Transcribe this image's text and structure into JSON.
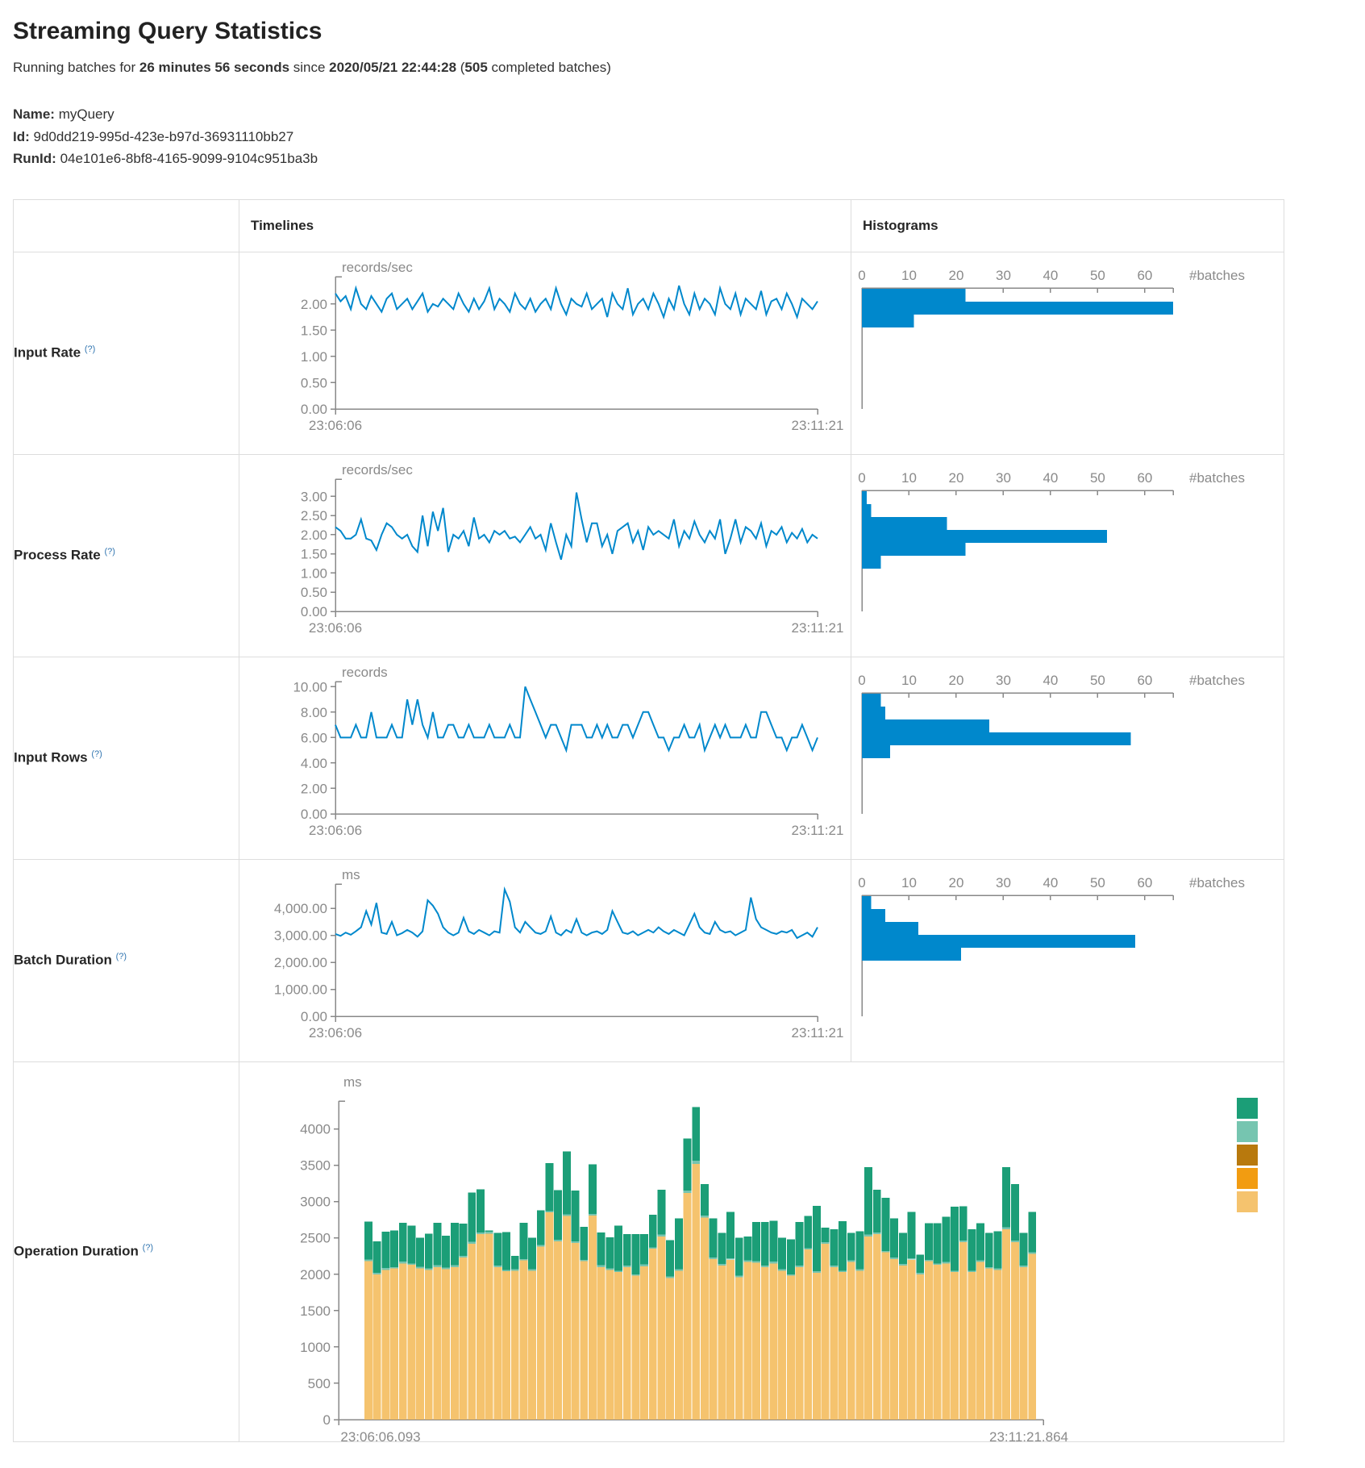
{
  "header": {
    "title": "Streaming Query Statistics",
    "running_prefix": "Running batches for ",
    "duration": "26 minutes 56 seconds",
    "since": " since ",
    "start_time": "2020/05/21 22:44:28",
    "open_paren": " (",
    "completed_batches": "505",
    "completed_suffix": " completed batches)"
  },
  "meta": {
    "name_label": "Name:",
    "name_value": "myQuery",
    "id_label": "Id:",
    "id_value": "9d0dd219-995d-423e-b97d-36931110bb27",
    "runid_label": "RunId:",
    "runid_value": "04e101e6-8bf8-4165-9099-9104c951ba3b"
  },
  "table": {
    "col_timelines": "Timelines",
    "col_histograms": "Histograms"
  },
  "colors": {
    "accent_blue": "#0088cc",
    "axis_gray": "#888888",
    "text_gray": "#8a8a8a",
    "stack_tan": "#f5c36e",
    "stack_lightteal": "#76c5b0",
    "stack_teal": "#1b9e77",
    "legend": [
      "#1b9e77",
      "#76c5b0",
      "#b8790d",
      "#f29c11",
      "#f5c36e"
    ]
  },
  "chart_data": [
    {
      "label": "Input Rate",
      "tooltip": "(?)",
      "timeline": {
        "type": "line",
        "unit": "records/sec",
        "ymax": 2.52,
        "yticks": [
          0,
          0.5,
          1,
          1.5,
          2
        ],
        "ytick_labels": [
          "0.00",
          "0.50",
          "1.00",
          "1.50",
          "2.00"
        ],
        "x_start": "23:06:06",
        "x_end": "23:11:21",
        "values": [
          2.2,
          2.05,
          2.15,
          1.9,
          2.3,
          2.0,
          1.9,
          2.15,
          2.0,
          1.85,
          2.1,
          2.2,
          1.9,
          2.0,
          2.1,
          1.9,
          2.05,
          2.2,
          1.85,
          2.0,
          1.95,
          2.1,
          2.0,
          1.9,
          2.2,
          2.0,
          1.85,
          2.1,
          1.9,
          2.05,
          2.3,
          1.9,
          2.1,
          2.0,
          1.85,
          2.2,
          2.0,
          1.9,
          2.1,
          1.85,
          2.0,
          2.1,
          1.9,
          2.3,
          2.0,
          1.8,
          2.1,
          2.0,
          1.95,
          2.2,
          1.9,
          2.0,
          2.1,
          1.75,
          2.2,
          2.0,
          1.9,
          2.3,
          1.8,
          2.0,
          2.1,
          1.9,
          2.2,
          2.0,
          1.75,
          2.1,
          1.9,
          2.35,
          2.0,
          1.8,
          2.2,
          1.9,
          2.1,
          2.0,
          1.8,
          2.3,
          2.0,
          1.9,
          2.2,
          1.8,
          2.1,
          2.0,
          1.9,
          2.25,
          1.8,
          2.05,
          2.1,
          1.9,
          2.2,
          2.0,
          1.75,
          2.1,
          2.0,
          1.9,
          2.05
        ]
      },
      "histogram": {
        "type": "bar",
        "axis_label": "#batches",
        "xticks": [
          0,
          10,
          20,
          30,
          40,
          50,
          60
        ],
        "xmax": 66,
        "counts": [
          22,
          66,
          11
        ]
      }
    },
    {
      "label": "Process Rate",
      "tooltip": "(?)",
      "timeline": {
        "type": "line",
        "unit": "records/sec",
        "ymax": 3.45,
        "yticks": [
          0,
          0.5,
          1,
          1.5,
          2,
          2.5,
          3
        ],
        "ytick_labels": [
          "0.00",
          "0.50",
          "1.00",
          "1.50",
          "2.00",
          "2.50",
          "3.00"
        ],
        "x_start": "23:06:06",
        "x_end": "23:11:21",
        "values": [
          2.2,
          2.1,
          1.9,
          1.9,
          2.0,
          2.4,
          1.9,
          1.85,
          1.6,
          2.0,
          2.3,
          2.2,
          2.0,
          1.9,
          2.0,
          1.7,
          1.55,
          2.5,
          1.7,
          2.6,
          2.1,
          2.7,
          1.55,
          2.0,
          1.9,
          2.1,
          1.7,
          2.45,
          1.9,
          2.0,
          1.8,
          2.1,
          2.0,
          2.1,
          1.9,
          1.95,
          1.8,
          2.0,
          2.2,
          1.9,
          2.0,
          1.6,
          2.3,
          1.8,
          1.35,
          2.0,
          1.7,
          3.1,
          2.4,
          1.8,
          2.3,
          2.3,
          1.7,
          2.0,
          1.5,
          2.1,
          2.2,
          2.3,
          1.8,
          2.1,
          1.6,
          2.2,
          2.0,
          2.1,
          2.0,
          1.9,
          2.4,
          1.7,
          2.1,
          1.9,
          2.35,
          2.0,
          1.8,
          2.1,
          1.9,
          2.4,
          1.5,
          1.9,
          2.4,
          1.8,
          2.2,
          2.1,
          1.9,
          2.3,
          1.7,
          2.1,
          2.0,
          2.2,
          1.8,
          2.05,
          1.9,
          2.15,
          1.8,
          2.0,
          1.9
        ]
      },
      "histogram": {
        "type": "bar",
        "axis_label": "#batches",
        "xticks": [
          0,
          10,
          20,
          30,
          40,
          50,
          60
        ],
        "xmax": 66,
        "counts": [
          1,
          2,
          18,
          52,
          22,
          4
        ]
      }
    },
    {
      "label": "Input Rows",
      "tooltip": "(?)",
      "timeline": {
        "type": "line",
        "unit": "records",
        "ymax": 10.4,
        "yticks": [
          0,
          2,
          4,
          6,
          8,
          10
        ],
        "ytick_labels": [
          "0.00",
          "2.00",
          "4.00",
          "6.00",
          "8.00",
          "10.00"
        ],
        "x_start": "23:06:06",
        "x_end": "23:11:21",
        "values": [
          7,
          6,
          6,
          6,
          7,
          6,
          6,
          8,
          6,
          6,
          6,
          7,
          6,
          6,
          9,
          7,
          9,
          7,
          6,
          8,
          6,
          6,
          7,
          7,
          6,
          6,
          7,
          6,
          6,
          6,
          7,
          6,
          6,
          6,
          7,
          6,
          6,
          10,
          9,
          8,
          7,
          6,
          7,
          7,
          6,
          5,
          7,
          7,
          7,
          6,
          6,
          7,
          6,
          7,
          6,
          6,
          7,
          7,
          6,
          7,
          8,
          8,
          7,
          6,
          6,
          5,
          6,
          6,
          7,
          6,
          6,
          7,
          5,
          6,
          7,
          6,
          7,
          6,
          6,
          6,
          7,
          6,
          6,
          8,
          8,
          7,
          6,
          6,
          5,
          6,
          6,
          7,
          6,
          5,
          6
        ]
      },
      "histogram": {
        "type": "bar",
        "axis_label": "#batches",
        "xticks": [
          0,
          10,
          20,
          30,
          40,
          50,
          60
        ],
        "xmax": 66,
        "counts": [
          4,
          5,
          27,
          57,
          6
        ]
      }
    },
    {
      "label": "Batch Duration",
      "tooltip": "(?)",
      "timeline": {
        "type": "line",
        "unit": "ms",
        "ymax": 4900,
        "yticks": [
          0,
          1000,
          2000,
          3000,
          4000
        ],
        "ytick_labels": [
          "0.00",
          "1,000.00",
          "2,000.00",
          "3,000.00",
          "4,000.00"
        ],
        "x_start": "23:06:06",
        "x_end": "23:11:21",
        "values": [
          3050,
          2980,
          3100,
          3020,
          3150,
          3300,
          3900,
          3400,
          4200,
          3100,
          3050,
          3500,
          3000,
          3080,
          3200,
          3100,
          2950,
          3150,
          4300,
          4100,
          3800,
          3300,
          3100,
          3000,
          3100,
          3650,
          3150,
          3050,
          3200,
          3100,
          3000,
          3150,
          3100,
          4700,
          4250,
          3300,
          3100,
          3500,
          3300,
          3100,
          3050,
          3150,
          3700,
          3100,
          3000,
          3200,
          3100,
          3600,
          3100,
          3000,
          3100,
          3150,
          3050,
          3200,
          3900,
          3500,
          3100,
          3050,
          3150,
          3000,
          3100,
          3200,
          3100,
          3300,
          3150,
          3050,
          3200,
          3100,
          3000,
          3400,
          3800,
          3300,
          3100,
          3050,
          3500,
          3200,
          3100,
          3150,
          3000,
          3100,
          3200,
          4400,
          3600,
          3300,
          3200,
          3100,
          3050,
          3150,
          3100,
          3200,
          2900,
          3000,
          3100,
          2950,
          3300
        ]
      },
      "histogram": {
        "type": "bar",
        "axis_label": "#batches",
        "xticks": [
          0,
          10,
          20,
          30,
          40,
          50,
          60
        ],
        "xmax": 66,
        "counts": [
          2,
          5,
          12,
          58,
          21
        ]
      }
    },
    {
      "label": "Operation Duration",
      "tooltip": "(?)",
      "stacked": {
        "type": "stacked-bar",
        "unit": "ms",
        "ymax": 4350,
        "yticks": [
          0,
          500,
          1000,
          1500,
          2000,
          2500,
          3000,
          3500,
          4000
        ],
        "ytick_labels": [
          "0",
          "500",
          "1000",
          "1500",
          "2000",
          "2500",
          "3000",
          "3500",
          "4000"
        ],
        "x_start": "23:06:06.093",
        "x_end": "23:11:21.864",
        "bars": [
          [
            2180,
            25,
            520
          ],
          [
            2000,
            20,
            430
          ],
          [
            2060,
            25,
            500
          ],
          [
            2080,
            20,
            500
          ],
          [
            2150,
            25,
            530
          ],
          [
            2130,
            20,
            520
          ],
          [
            2080,
            25,
            395
          ],
          [
            2060,
            20,
            480
          ],
          [
            2100,
            25,
            585
          ],
          [
            2070,
            20,
            440
          ],
          [
            2100,
            25,
            585
          ],
          [
            2230,
            25,
            440
          ],
          [
            2420,
            25,
            680
          ],
          [
            2550,
            25,
            595
          ],
          [
            2560,
            25,
            20
          ],
          [
            2100,
            20,
            450
          ],
          [
            2040,
            20,
            520
          ],
          [
            2050,
            20,
            180
          ],
          [
            2190,
            20,
            500
          ],
          [
            2050,
            20,
            430
          ],
          [
            2380,
            20,
            480
          ],
          [
            2850,
            20,
            660
          ],
          [
            2450,
            25,
            680
          ],
          [
            2800,
            25,
            865
          ],
          [
            2430,
            20,
            700
          ],
          [
            2180,
            20,
            450
          ],
          [
            2810,
            20,
            680
          ],
          [
            2100,
            25,
            450
          ],
          [
            2060,
            20,
            430
          ],
          [
            2030,
            20,
            620
          ],
          [
            2100,
            20,
            430
          ],
          [
            1980,
            20,
            550
          ],
          [
            2110,
            25,
            420
          ],
          [
            2350,
            20,
            450
          ],
          [
            2520,
            25,
            620
          ],
          [
            1950,
            20,
            500
          ],
          [
            2050,
            20,
            700
          ],
          [
            3120,
            30,
            720
          ],
          [
            3520,
            40,
            740
          ],
          [
            2780,
            30,
            430
          ],
          [
            2210,
            20,
            540
          ],
          [
            2120,
            20,
            430
          ],
          [
            2200,
            20,
            640
          ],
          [
            1960,
            20,
            520
          ],
          [
            2170,
            20,
            330
          ],
          [
            2160,
            20,
            540
          ],
          [
            2100,
            20,
            600
          ],
          [
            2150,
            25,
            560
          ],
          [
            2050,
            20,
            430
          ],
          [
            1980,
            20,
            480
          ],
          [
            2100,
            20,
            600
          ],
          [
            2340,
            20,
            440
          ],
          [
            2020,
            20,
            900
          ],
          [
            2420,
            20,
            200
          ],
          [
            2100,
            20,
            500
          ],
          [
            2030,
            20,
            680
          ],
          [
            2170,
            20,
            380
          ],
          [
            2050,
            20,
            520
          ],
          [
            2520,
            25,
            930
          ],
          [
            2550,
            25,
            585
          ],
          [
            2300,
            20,
            730
          ],
          [
            2210,
            20,
            540
          ],
          [
            2120,
            20,
            430
          ],
          [
            2200,
            20,
            640
          ],
          [
            2000,
            20,
            250
          ],
          [
            2180,
            20,
            500
          ],
          [
            2130,
            20,
            550
          ],
          [
            2150,
            20,
            620
          ],
          [
            2030,
            20,
            880
          ],
          [
            2440,
            25,
            470
          ],
          [
            2030,
            20,
            570
          ],
          [
            2170,
            20,
            510
          ],
          [
            2080,
            20,
            470
          ],
          [
            2060,
            20,
            510
          ],
          [
            2620,
            25,
            830
          ],
          [
            2440,
            25,
            775
          ],
          [
            2100,
            20,
            450
          ],
          [
            2280,
            25,
            555
          ]
        ]
      }
    }
  ]
}
